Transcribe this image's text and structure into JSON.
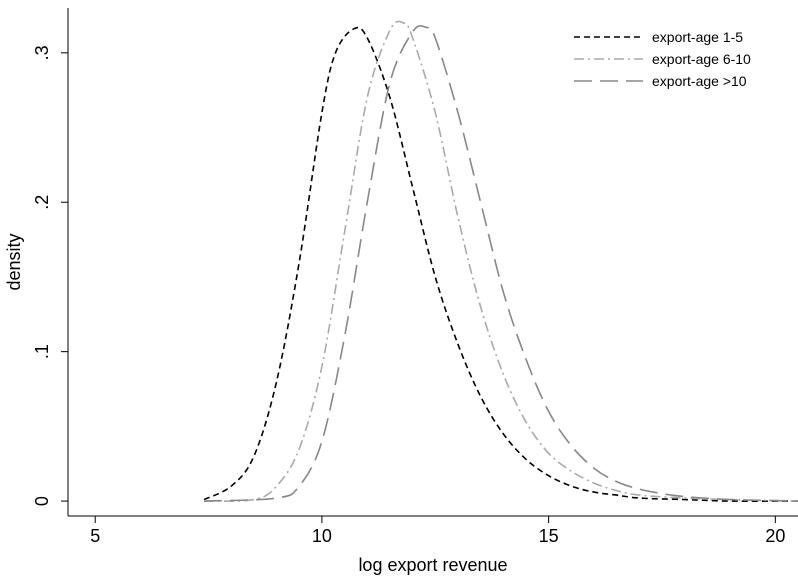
{
  "chart_data": {
    "type": "line",
    "title": "",
    "xlabel": "log export revenue",
    "ylabel": "density",
    "xlim": [
      4.4,
      20.5
    ],
    "ylim": [
      -0.01,
      0.33
    ],
    "xticks": [
      5,
      10,
      15,
      20
    ],
    "xtick_labels": [
      "5",
      "10",
      "15",
      "20"
    ],
    "yticks": [
      0,
      0.1,
      0.2,
      0.3
    ],
    "ytick_labels": [
      "0",
      ".1",
      ".2",
      ".3"
    ],
    "grid": false,
    "legend_position": "top-right",
    "series": [
      {
        "name": "export-age 1-5",
        "color": "#000000",
        "dash": "short-dash",
        "x": [
          7.4,
          8.0,
          8.5,
          9.0,
          9.5,
          10.0,
          10.3,
          10.7,
          11.0,
          11.5,
          12.0,
          12.5,
          13.0,
          13.5,
          14.0,
          14.5,
          15.0,
          15.5,
          16.0,
          16.5,
          17.0,
          18.0,
          19.0,
          20.5
        ],
        "y": [
          0.001,
          0.01,
          0.03,
          0.08,
          0.16,
          0.26,
          0.3,
          0.316,
          0.31,
          0.27,
          0.21,
          0.15,
          0.105,
          0.07,
          0.045,
          0.028,
          0.017,
          0.01,
          0.006,
          0.004,
          0.002,
          0.001,
          0.0,
          0.0
        ]
      },
      {
        "name": "export-age 6-10",
        "color": "#aaaaaa",
        "dash": "dash-dot",
        "x": [
          7.4,
          8.5,
          9.0,
          9.5,
          10.0,
          10.5,
          11.0,
          11.5,
          11.8,
          12.0,
          12.5,
          13.0,
          13.5,
          14.0,
          14.5,
          15.0,
          15.5,
          16.0,
          16.5,
          17.0,
          18.0,
          19.0,
          20.5
        ],
        "y": [
          0.0,
          0.001,
          0.01,
          0.035,
          0.09,
          0.18,
          0.27,
          0.315,
          0.32,
          0.31,
          0.26,
          0.19,
          0.13,
          0.085,
          0.053,
          0.032,
          0.02,
          0.012,
          0.007,
          0.004,
          0.002,
          0.001,
          0.0
        ]
      },
      {
        "name": "export-age >10",
        "color": "#888888",
        "dash": "long-dash",
        "x": [
          7.4,
          9.0,
          9.5,
          10.0,
          10.5,
          11.0,
          11.5,
          12.0,
          12.3,
          12.5,
          13.0,
          13.5,
          14.0,
          14.5,
          15.0,
          15.5,
          16.0,
          16.5,
          17.0,
          17.5,
          18.0,
          19.0,
          20.5
        ],
        "y": [
          0.0,
          0.002,
          0.01,
          0.04,
          0.11,
          0.2,
          0.28,
          0.314,
          0.317,
          0.31,
          0.26,
          0.2,
          0.14,
          0.095,
          0.06,
          0.037,
          0.022,
          0.013,
          0.008,
          0.005,
          0.003,
          0.001,
          0.0
        ]
      }
    ]
  }
}
